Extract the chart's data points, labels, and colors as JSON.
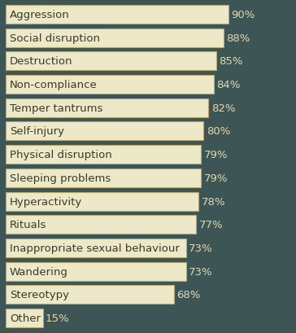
{
  "categories": [
    "Aggression",
    "Social disruption",
    "Destruction",
    "Non-compliance",
    "Temper tantrums",
    "Self-injury",
    "Physical disruption",
    "Sleeping problems",
    "Hyperactivity",
    "Rituals",
    "Inappropriate sexual behaviour",
    "Wandering",
    "Stereotypy",
    "Other"
  ],
  "values": [
    90,
    88,
    85,
    84,
    82,
    80,
    79,
    79,
    78,
    77,
    73,
    73,
    68,
    15
  ],
  "bar_color": "#ede8c8",
  "background_color": "#3d5555",
  "text_color_inside": "#3a3a2a",
  "pct_color": "#e0d8b0",
  "bar_border_color": "#b8a870",
  "label_fontsize": 9.5,
  "pct_fontsize": 9.5,
  "bar_edge_linewidth": 0.8
}
